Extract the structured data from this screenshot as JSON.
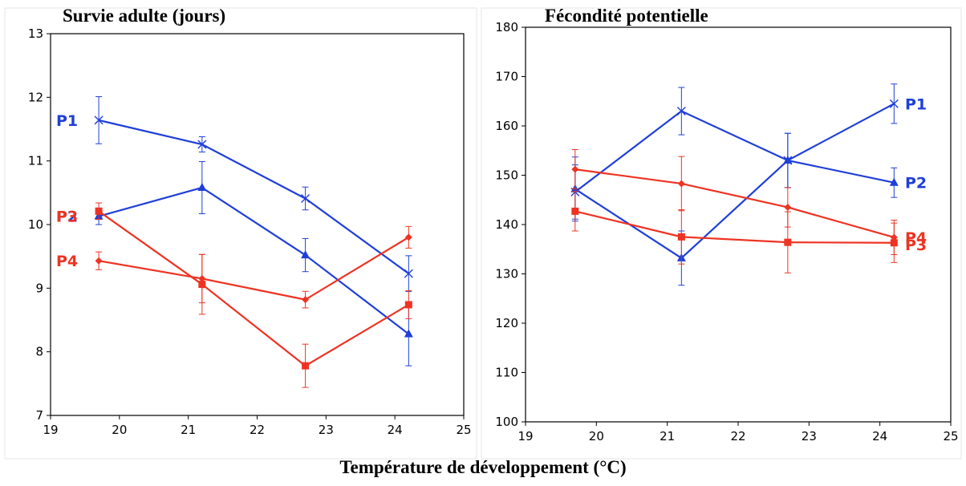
{
  "xlabel": "Température de développement (°C)",
  "colors": {
    "blue": "#1f3fd8",
    "red": "#ee3322"
  },
  "chart_data": [
    {
      "type": "line",
      "title": "Survie adulte (jours)",
      "xlim": [
        19,
        25
      ],
      "ylim": [
        7,
        13
      ],
      "xticks": [
        19,
        20,
        21,
        22,
        23,
        24,
        25
      ],
      "yticks": [
        7,
        8,
        9,
        10,
        11,
        12,
        13
      ],
      "x": [
        19.7,
        21.2,
        22.7,
        24.2
      ],
      "series": [
        {
          "name": "P1",
          "color": "#1f3fd8",
          "marker": "x",
          "values": [
            11.64,
            11.26,
            10.41,
            9.23
          ],
          "errors": [
            0.37,
            0.12,
            0.18,
            0.28
          ]
        },
        {
          "name": "P2",
          "color": "#1f3fd8",
          "marker": "triangle",
          "values": [
            10.13,
            10.58,
            9.52,
            8.28
          ],
          "errors": [
            0.13,
            0.41,
            0.26,
            0.5
          ]
        },
        {
          "name": "P3",
          "color": "#ee3322",
          "marker": "square",
          "values": [
            10.21,
            9.06,
            7.78,
            8.74
          ],
          "errors": [
            0.13,
            0.47,
            0.34,
            0.22
          ]
        },
        {
          "name": "P4",
          "color": "#ee3322",
          "marker": "diamond",
          "values": [
            9.43,
            9.15,
            8.82,
            9.8
          ],
          "errors": [
            0.14,
            0.38,
            0.13,
            0.17
          ]
        }
      ]
    },
    {
      "type": "line",
      "title": "Fécondité potentielle",
      "xlim": [
        19,
        25
      ],
      "ylim": [
        100,
        180
      ],
      "xticks": [
        19,
        20,
        21,
        22,
        23,
        24,
        25
      ],
      "yticks": [
        100,
        110,
        120,
        130,
        140,
        150,
        160,
        170,
        180
      ],
      "x": [
        19.7,
        21.2,
        22.7,
        24.2
      ],
      "series": [
        {
          "name": "P1",
          "color": "#1f3fd8",
          "marker": "x",
          "values": [
            146.6,
            163.0,
            153.0,
            164.5
          ],
          "errors": [
            5.5,
            4.8,
            5.5,
            4.0
          ]
        },
        {
          "name": "P2",
          "color": "#1f3fd8",
          "marker": "triangle",
          "values": [
            147.2,
            133.2,
            153.0,
            148.5
          ],
          "errors": [
            6.5,
            5.5,
            5.5,
            3.0
          ]
        },
        {
          "name": "P3",
          "color": "#ee3322",
          "marker": "square",
          "values": [
            142.7,
            137.5,
            136.4,
            136.3
          ],
          "errors": [
            4.0,
            5.5,
            6.2,
            4.0
          ]
        },
        {
          "name": "P4",
          "color": "#ee3322",
          "marker": "diamond",
          "values": [
            151.2,
            148.3,
            143.5,
            137.4
          ],
          "errors": [
            4.0,
            5.5,
            4.0,
            3.5
          ]
        }
      ]
    }
  ]
}
